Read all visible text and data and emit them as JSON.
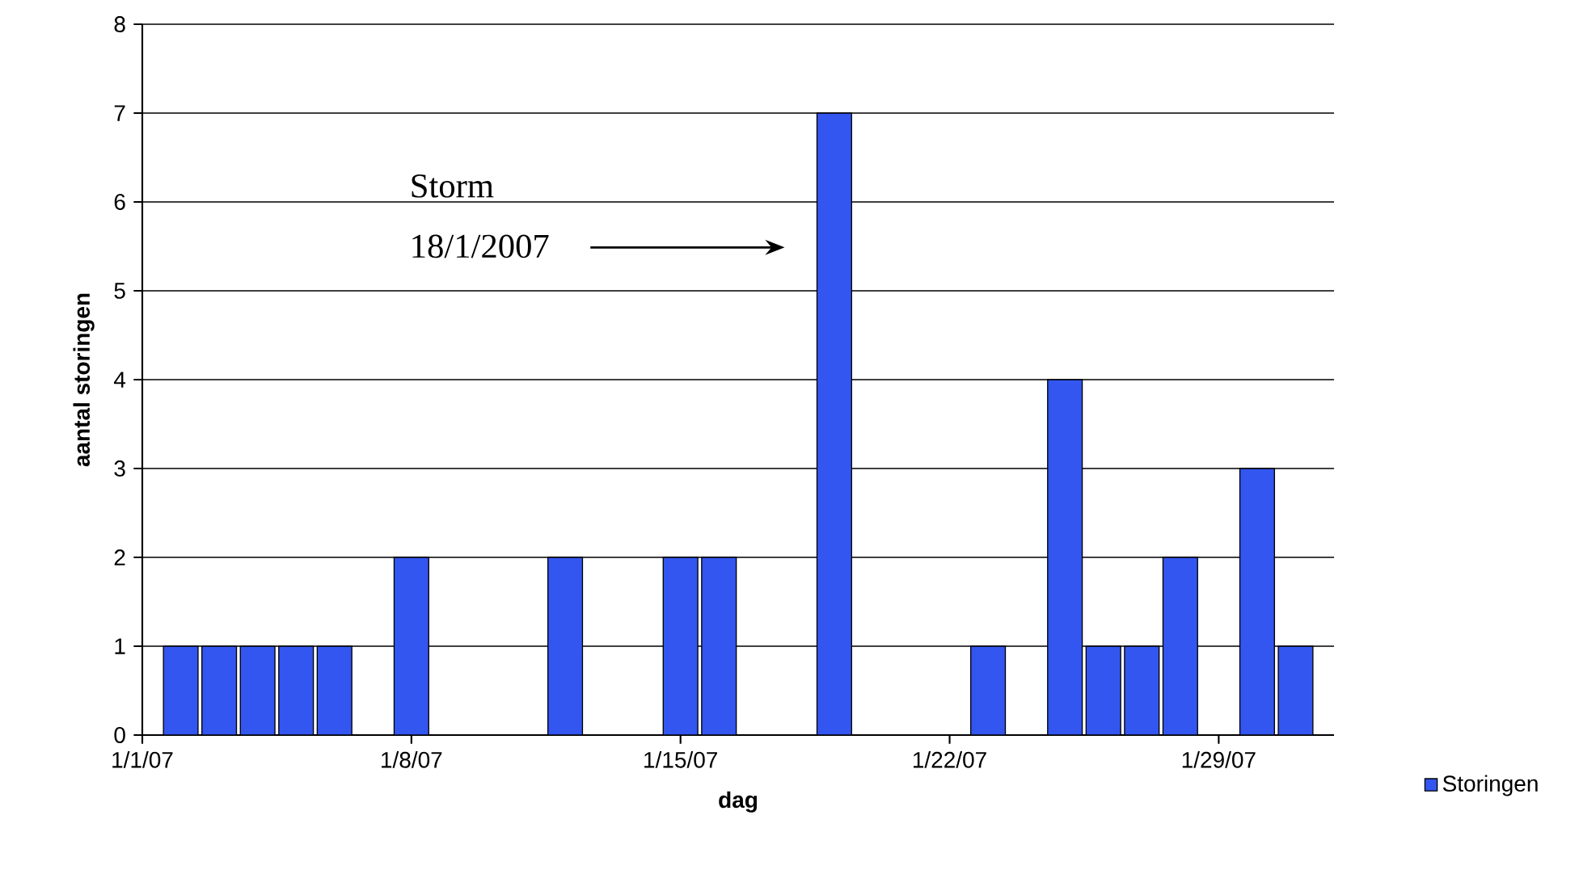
{
  "chart_data": {
    "type": "bar",
    "x": [
      "2007-01-02",
      "2007-01-03",
      "2007-01-04",
      "2007-01-05",
      "2007-01-06",
      "2007-01-08",
      "2007-01-12",
      "2007-01-15",
      "2007-01-16",
      "2007-01-19",
      "2007-01-23",
      "2007-01-25",
      "2007-01-26",
      "2007-01-27",
      "2007-01-28",
      "2007-01-30",
      "2007-01-31"
    ],
    "series": [
      {
        "name": "Storingen",
        "color": "#3356f0",
        "values": [
          1,
          1,
          1,
          1,
          1,
          2,
          2,
          2,
          2,
          7,
          1,
          4,
          1,
          1,
          2,
          3,
          1
        ]
      }
    ],
    "xlabel": "dag",
    "ylabel": "aantal storingen",
    "xlim": [
      "2007-01-01",
      "2007-02-01"
    ],
    "xticks": [
      {
        "value": "2007-01-01",
        "label": "1/1/07"
      },
      {
        "value": "2007-01-08",
        "label": "1/8/07"
      },
      {
        "value": "2007-01-15",
        "label": "1/15/07"
      },
      {
        "value": "2007-01-22",
        "label": "1/22/07"
      },
      {
        "value": "2007-01-29",
        "label": "1/29/07"
      }
    ],
    "ylim": [
      0,
      8
    ],
    "yticks": [
      0,
      1,
      2,
      3,
      4,
      5,
      6,
      7,
      8
    ],
    "grid": "y",
    "legend": "right",
    "annotations": [
      "Storm 18/1/2007"
    ]
  }
}
